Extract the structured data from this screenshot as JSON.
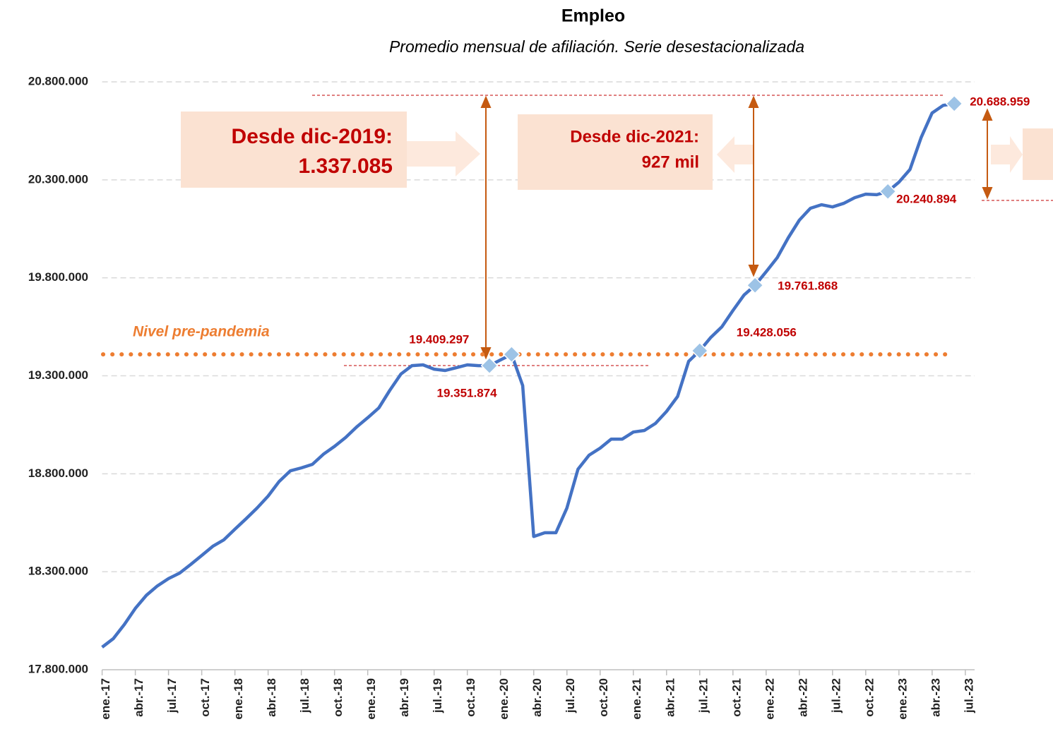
{
  "chart_data": {
    "type": "line",
    "title": "Empleo",
    "subtitle": "Promedio mensual de afiliación. Serie desestacionalizada",
    "categories": [
      "ene.-17",
      null,
      null,
      "abr.-17",
      null,
      null,
      "jul.-17",
      null,
      null,
      "oct.-17",
      null,
      null,
      "ene.-18",
      null,
      null,
      "abr.-18",
      null,
      null,
      "jul.-18",
      null,
      null,
      "oct.-18",
      null,
      null,
      "ene.-19",
      null,
      null,
      "abr.-19",
      null,
      null,
      "jul.-19",
      null,
      null,
      "oct.-19",
      null,
      null,
      "ene.-20",
      null,
      null,
      "abr.-20",
      null,
      null,
      "jul.-20",
      null,
      null,
      "oct.-20",
      null,
      null,
      "ene.-21",
      null,
      null,
      "abr.-21",
      null,
      null,
      "jul.-21",
      null,
      null,
      "oct.-21",
      null,
      null,
      "ene.-22",
      null,
      null,
      "abr.-22",
      null,
      null,
      "jul.-22",
      null,
      null,
      "oct.-22",
      null,
      null,
      "ene.-23",
      null,
      null,
      "abr.-23",
      null,
      null,
      "jul.-23"
    ],
    "series": [
      {
        "name": "Afiliación",
        "color": "#4472c4",
        "values": [
          17915000,
          17958000,
          18030000,
          18113000,
          18180000,
          18228000,
          18265000,
          18293000,
          18337000,
          18383000,
          18430000,
          18463000,
          18517000,
          18570000,
          18625000,
          18686000,
          18761000,
          18815000,
          18830000,
          18848000,
          18900000,
          18940000,
          18985000,
          19039000,
          19086000,
          19136000,
          19226000,
          19309000,
          19352000,
          19356000,
          19334000,
          19327000,
          19341000,
          19356000,
          19352000,
          19351874,
          19381000,
          19409297,
          19250000,
          18480000,
          18499000,
          18499000,
          18625000,
          18823000,
          18895000,
          18931000,
          18977000,
          18977000,
          19013000,
          19021000,
          19057000,
          19118000,
          19194000,
          19374000,
          19428056,
          19496000,
          19550000,
          19633000,
          19712000,
          19761868,
          19831000,
          19903000,
          20004000,
          20094000,
          20155000,
          20173000,
          20162000,
          20180000,
          20209000,
          20227000,
          20224000,
          20240894,
          20288000,
          20353000,
          20515000,
          20641000,
          20680000,
          20688959,
          null
        ],
        "value_labels": [
          null,
          null,
          null,
          null,
          null,
          null,
          null,
          null,
          null,
          null,
          null,
          null,
          null,
          null,
          null,
          null,
          null,
          null,
          null,
          null,
          null,
          null,
          null,
          null,
          null,
          null,
          null,
          null,
          null,
          null,
          null,
          null,
          null,
          null,
          null,
          "19.351.874",
          null,
          "19.409.297",
          null,
          null,
          null,
          null,
          null,
          null,
          null,
          null,
          null,
          null,
          null,
          null,
          null,
          null,
          null,
          null,
          "19.428.056",
          null,
          null,
          null,
          null,
          "19.761.868",
          null,
          null,
          null,
          null,
          null,
          null,
          null,
          null,
          null,
          null,
          null,
          "20.240.894",
          null,
          null,
          null,
          null,
          null,
          "20.688.959",
          null
        ]
      }
    ],
    "ylim": [
      17800000,
      20800000
    ],
    "yticks": [
      {
        "value": 17800000,
        "label": "17.800.000"
      },
      {
        "value": 18300000,
        "label": "18.300.000"
      },
      {
        "value": 18800000,
        "label": "18.800.000"
      },
      {
        "value": 19300000,
        "label": "19.300.000"
      },
      {
        "value": 19800000,
        "label": "19.800.000"
      },
      {
        "value": 20300000,
        "label": "20.300.000"
      },
      {
        "value": 20800000,
        "label": "20.800.000"
      }
    ],
    "grid": true,
    "annotations": {
      "pre_pandemic": "Nivel pre-pandemia",
      "box1": [
        "Desde dic-2019:",
        "1.337.085"
      ],
      "box2": [
        "Desde dic-2021:",
        "927 mil"
      ]
    }
  }
}
